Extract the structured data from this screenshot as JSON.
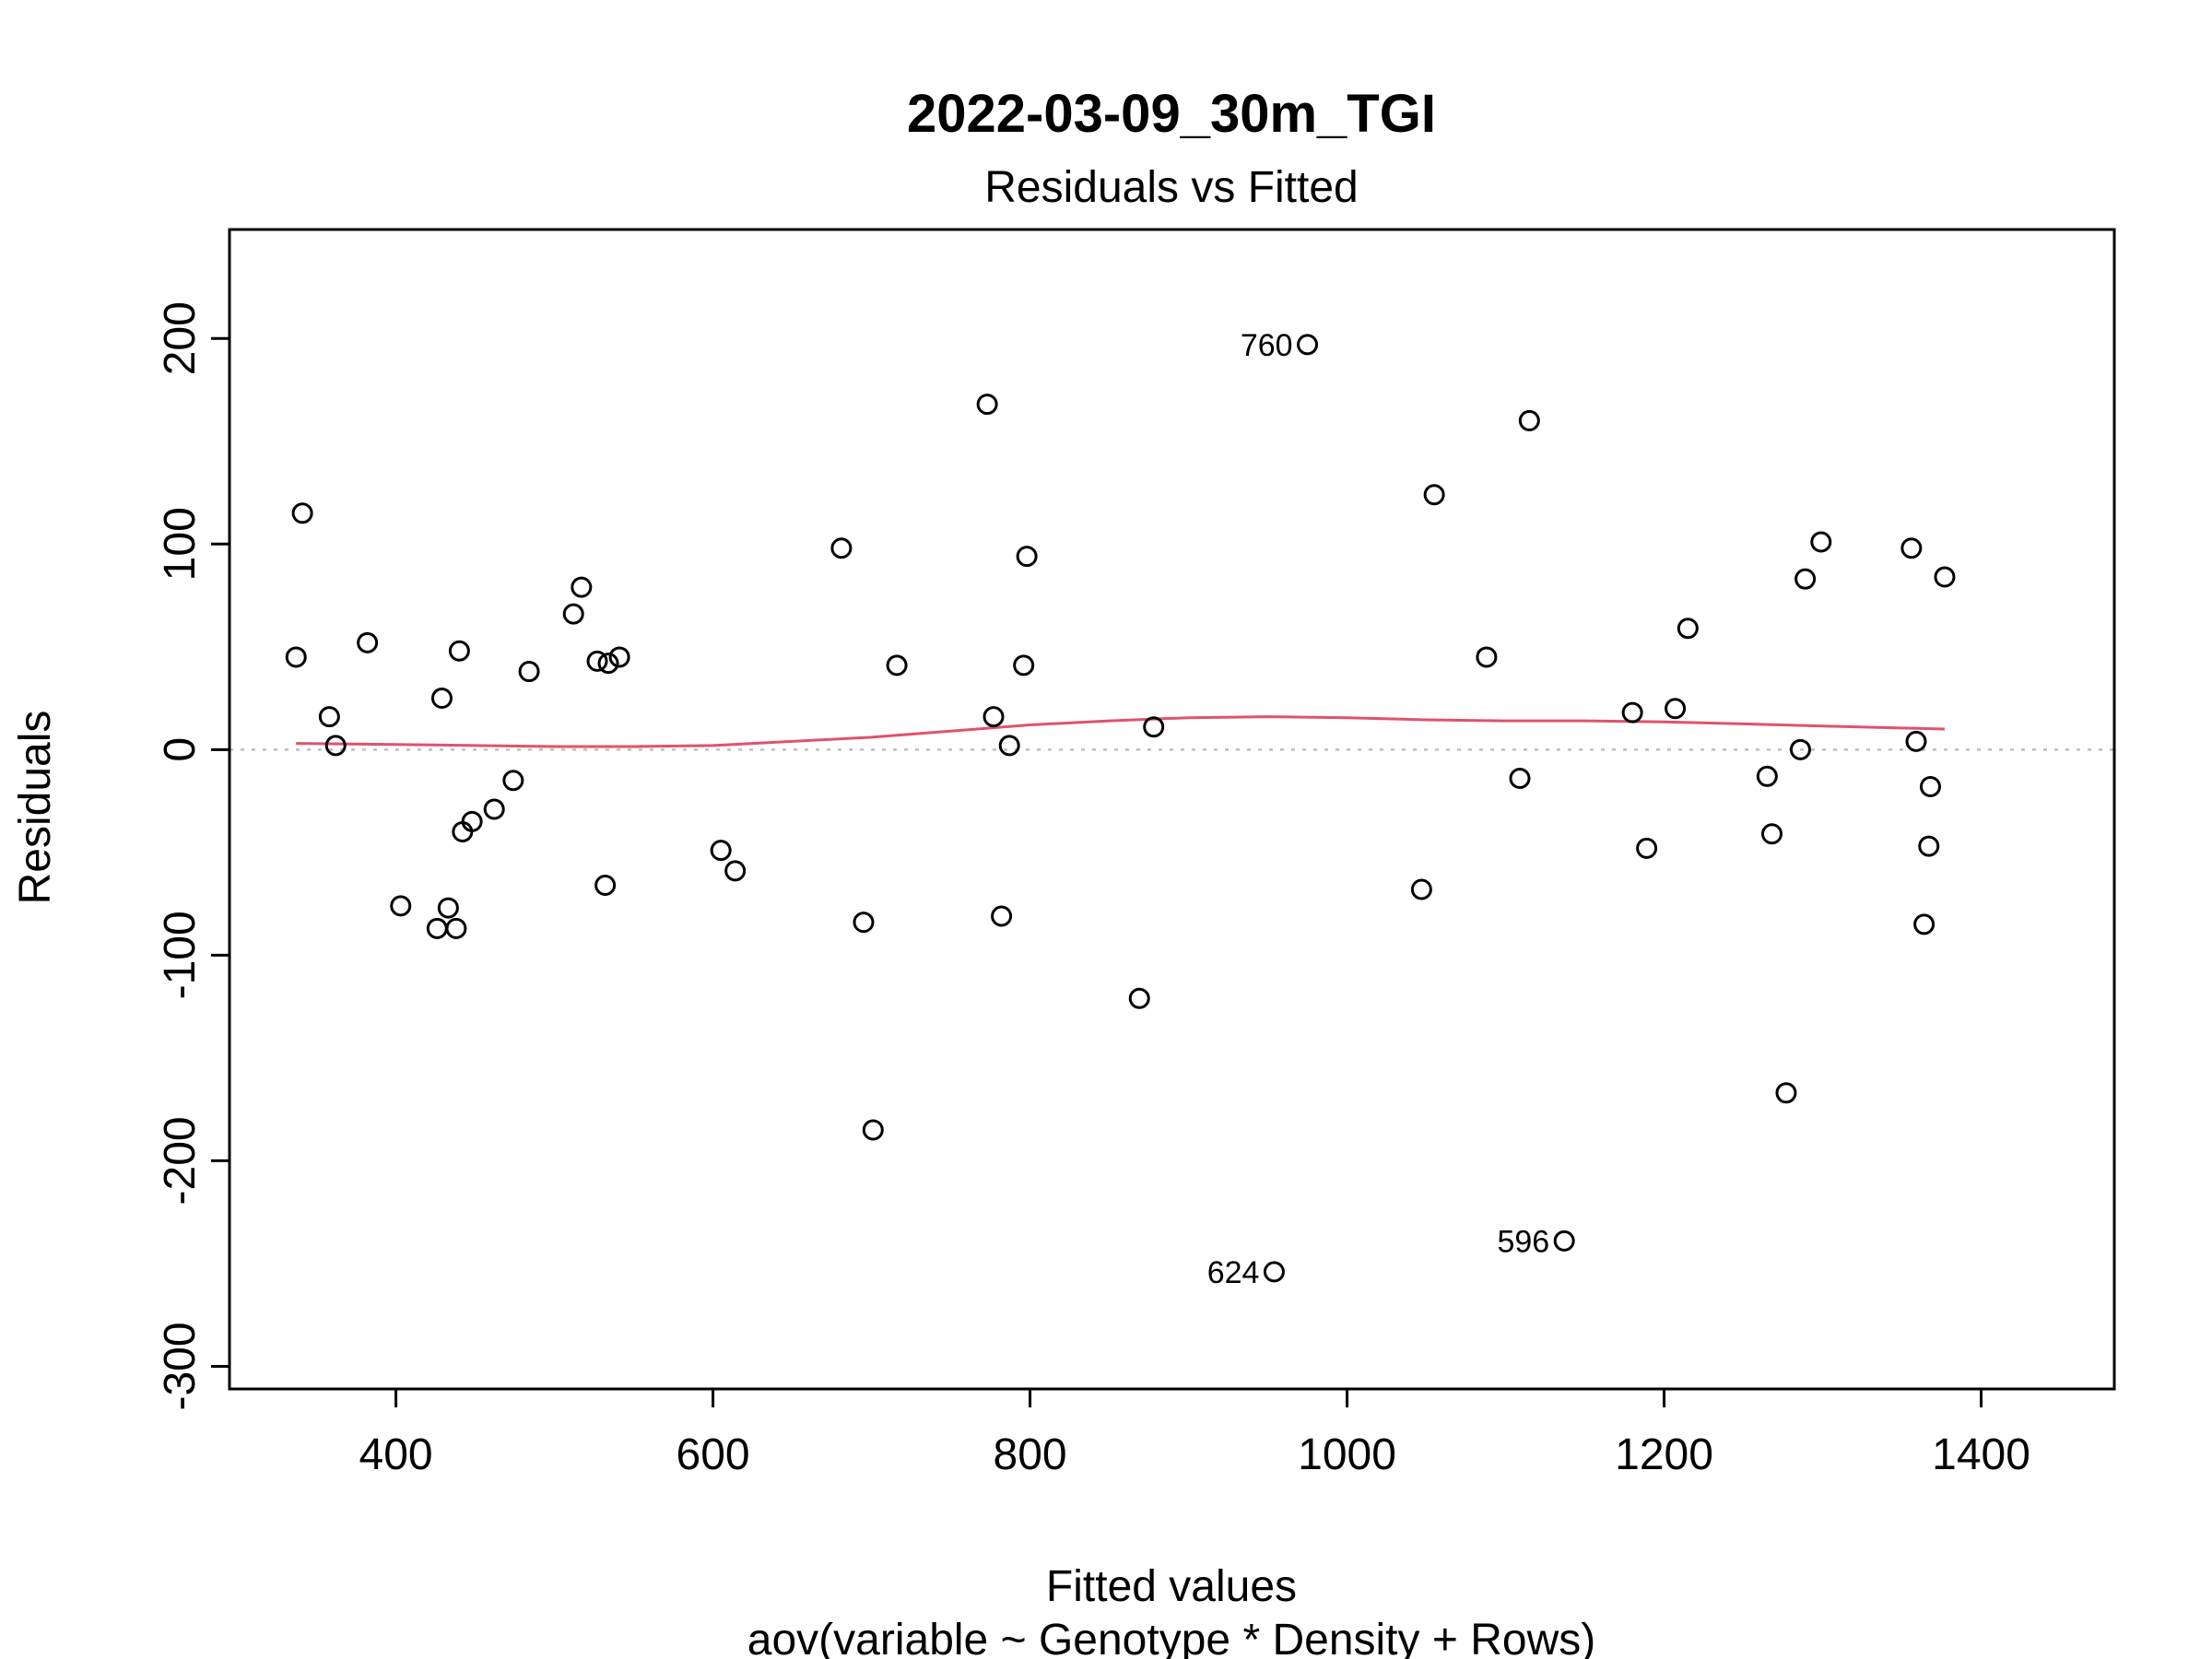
{
  "chart_data": {
    "type": "scatter",
    "title": "2022-03-09_30m_TGI",
    "subtitle": "Residuals vs Fitted",
    "xlabel": "Fitted values",
    "xlabel_sub": "aov(variable ~ Genotype * Density + Rows)",
    "ylabel": "Residuals",
    "xlim": [
      295,
      1484
    ],
    "ylim": [
      -311,
      253
    ],
    "xticks": [
      400,
      600,
      800,
      1000,
      1200,
      1400
    ],
    "yticks": [
      -300,
      -200,
      -100,
      0,
      100,
      200
    ],
    "reference_line": 0,
    "colors": {
      "smooth": "#DF536B",
      "points": "#000000",
      "reference": "#BEBEBE"
    },
    "points": [
      {
        "x": 337,
        "y": 45
      },
      {
        "x": 341,
        "y": 115
      },
      {
        "x": 358,
        "y": 16
      },
      {
        "x": 362,
        "y": 2
      },
      {
        "x": 382,
        "y": 52
      },
      {
        "x": 403,
        "y": -76
      },
      {
        "x": 426,
        "y": -87
      },
      {
        "x": 429,
        "y": 25
      },
      {
        "x": 433,
        "y": -77
      },
      {
        "x": 438,
        "y": -87
      },
      {
        "x": 440,
        "y": 48
      },
      {
        "x": 442,
        "y": -40
      },
      {
        "x": 448,
        "y": -35
      },
      {
        "x": 462,
        "y": -29
      },
      {
        "x": 474,
        "y": -15
      },
      {
        "x": 484,
        "y": 38
      },
      {
        "x": 512,
        "y": 66
      },
      {
        "x": 517,
        "y": 79
      },
      {
        "x": 527,
        "y": 43
      },
      {
        "x": 532,
        "y": -66
      },
      {
        "x": 534,
        "y": 42
      },
      {
        "x": 541,
        "y": 45
      },
      {
        "x": 605,
        "y": -49
      },
      {
        "x": 614,
        "y": -59
      },
      {
        "x": 681,
        "y": 98
      },
      {
        "x": 695,
        "y": -84
      },
      {
        "x": 701,
        "y": -185
      },
      {
        "x": 716,
        "y": 41
      },
      {
        "x": 773,
        "y": 168
      },
      {
        "x": 777,
        "y": 16
      },
      {
        "x": 782,
        "y": -81
      },
      {
        "x": 787,
        "y": 2
      },
      {
        "x": 796,
        "y": 41
      },
      {
        "x": 798,
        "y": 94
      },
      {
        "x": 869,
        "y": -121
      },
      {
        "x": 878,
        "y": 11
      },
      {
        "x": 954,
        "y": -254
      },
      {
        "x": 975,
        "y": 197
      },
      {
        "x": 1047,
        "y": -68
      },
      {
        "x": 1055,
        "y": 124
      },
      {
        "x": 1088,
        "y": 45
      },
      {
        "x": 1109,
        "y": -14
      },
      {
        "x": 1115,
        "y": 160
      },
      {
        "x": 1137,
        "y": -239
      },
      {
        "x": 1180,
        "y": 18
      },
      {
        "x": 1189,
        "y": -48
      },
      {
        "x": 1207,
        "y": 20
      },
      {
        "x": 1215,
        "y": 59
      },
      {
        "x": 1265,
        "y": -13
      },
      {
        "x": 1268,
        "y": -41
      },
      {
        "x": 1277,
        "y": -167
      },
      {
        "x": 1286,
        "y": 0
      },
      {
        "x": 1289,
        "y": 83
      },
      {
        "x": 1299,
        "y": 101
      },
      {
        "x": 1356,
        "y": 98
      },
      {
        "x": 1359,
        "y": 4
      },
      {
        "x": 1364,
        "y": -85
      },
      {
        "x": 1367,
        "y": -47
      },
      {
        "x": 1368,
        "y": -18
      },
      {
        "x": 1377,
        "y": 84
      }
    ],
    "labeled_points": [
      {
        "label": "760",
        "x": 975,
        "y": 197
      },
      {
        "label": "624",
        "x": 954,
        "y": -254
      },
      {
        "label": "596",
        "x": 1137,
        "y": -239
      }
    ],
    "smooth_line": [
      {
        "x": 337,
        "y": 3
      },
      {
        "x": 400,
        "y": 2.5
      },
      {
        "x": 450,
        "y": 2
      },
      {
        "x": 500,
        "y": 1.5
      },
      {
        "x": 550,
        "y": 1.5
      },
      {
        "x": 600,
        "y": 2
      },
      {
        "x": 650,
        "y": 4
      },
      {
        "x": 700,
        "y": 6
      },
      {
        "x": 750,
        "y": 9
      },
      {
        "x": 800,
        "y": 12
      },
      {
        "x": 850,
        "y": 14
      },
      {
        "x": 900,
        "y": 15.5
      },
      {
        "x": 950,
        "y": 16
      },
      {
        "x": 1000,
        "y": 15.5
      },
      {
        "x": 1050,
        "y": 14.5
      },
      {
        "x": 1100,
        "y": 14
      },
      {
        "x": 1150,
        "y": 14
      },
      {
        "x": 1200,
        "y": 13.5
      },
      {
        "x": 1250,
        "y": 12.5
      },
      {
        "x": 1300,
        "y": 11.5
      },
      {
        "x": 1350,
        "y": 10.5
      },
      {
        "x": 1377,
        "y": 10
      }
    ]
  }
}
